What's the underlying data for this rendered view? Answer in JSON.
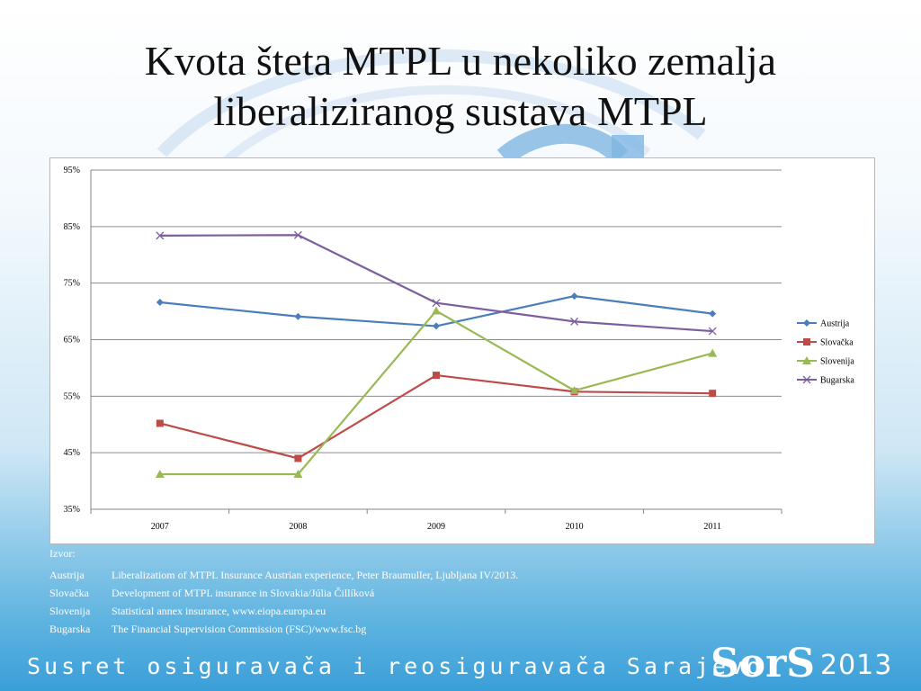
{
  "slide": {
    "title_line1": "Kvota šteta MTPL u nekoliko zemalja",
    "title_line2": "liberaliziranog sustava MTPL"
  },
  "sources": {
    "heading": "Izvor:",
    "items": [
      {
        "country": "Austrija",
        "text": "Liberalizatiom of MTPL Insurance Austrian experience, Peter Braumuller, Ljubljana IV/2013."
      },
      {
        "country": "Slovačka",
        "text": "Development of MTPL insurance in Slovakia/Júlia Čillíková"
      },
      {
        "country": "Slovenija",
        "text": "Statistical annex insurance, www.eiopa.europa.eu"
      },
      {
        "country": "Bugarska",
        "text": "The Financial Supervision Commission (FSC)/www.fsc.bg"
      }
    ]
  },
  "footer": {
    "text": "Susret osiguravača i reosiguravača Sarajevo",
    "logo": "SorS",
    "year": "2013"
  },
  "chart_data": {
    "type": "line",
    "categories": [
      "2007",
      "2008",
      "2009",
      "2010",
      "2011"
    ],
    "ylim": [
      35,
      95
    ],
    "yticks": [
      35,
      45,
      55,
      65,
      75,
      85,
      95
    ],
    "ytick_labels": [
      "35%",
      "45%",
      "55%",
      "65%",
      "75%",
      "85%",
      "95%"
    ],
    "grid": true,
    "legend_position": "right",
    "series": [
      {
        "name": "Austrija",
        "color": "#4a7ebb",
        "marker": "diamond",
        "values": [
          71.6,
          69.1,
          67.4,
          72.7,
          69.6
        ]
      },
      {
        "name": "Slovačka",
        "color": "#be4b48",
        "marker": "square",
        "values": [
          50.2,
          44.0,
          58.7,
          55.8,
          55.5
        ]
      },
      {
        "name": "Slovenija",
        "color": "#98b954",
        "marker": "triangle",
        "values": [
          41.2,
          41.2,
          70.1,
          56.0,
          62.6
        ]
      },
      {
        "name": "Bugarska",
        "color": "#7d5fa0",
        "marker": "x",
        "values": [
          83.4,
          83.5,
          71.5,
          68.2,
          66.5
        ]
      }
    ]
  }
}
